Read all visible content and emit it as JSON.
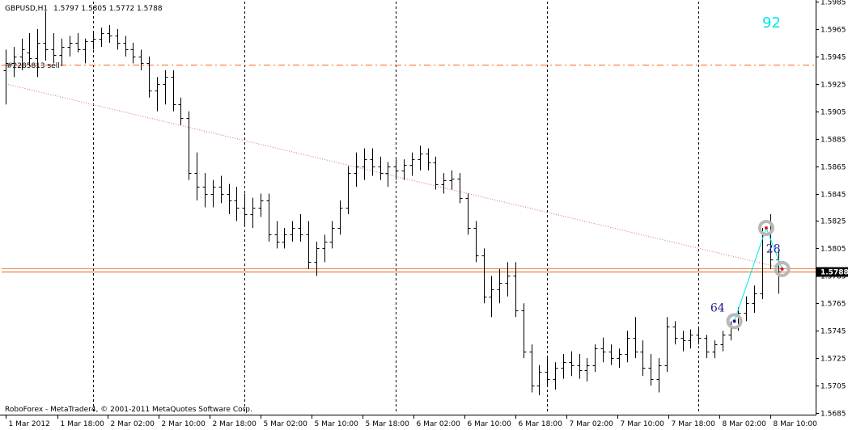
{
  "header": {
    "symbol_timeframe": "GBPUSD,H1",
    "ohlc": "1.5797 1.5805 1.5772 1.5788"
  },
  "footer": {
    "copyright": "RoboForex - MetaTrader4, © 2001-2011 MetaQuotes Software Corp."
  },
  "counter": {
    "value": "92",
    "color": "#00e5ee"
  },
  "order_label": "#2285813 sell",
  "price_label": "1.5788",
  "fib_labels": [
    {
      "text": "64",
      "x": 89.5,
      "y": 1.5762
    },
    {
      "text": "28",
      "x": 96.5,
      "y": 1.5805
    }
  ],
  "colors": {
    "bars": "#000000",
    "order_line": "#ff6a1a",
    "price_line": "#e8651a",
    "trend_line": "#d4735a",
    "swing_line": "#00e5ee",
    "fib_label": "#1a1a8c"
  },
  "chart_data": {
    "type": "ohlc-bar",
    "symbol": "GBPUSD",
    "timeframe": "H1",
    "ylim": [
      1.5685,
      1.5985
    ],
    "xlim": [
      -0.5,
      101.5
    ],
    "y_ticks": [
      "1.5985",
      "1.5965",
      "1.5945",
      "1.5925",
      "1.5905",
      "1.5885",
      "1.5865",
      "1.5845",
      "1.5825",
      "1.5805",
      "1.5785",
      "1.5765",
      "1.5745",
      "1.5725",
      "1.5705",
      "1.5685"
    ],
    "x_ticks": [
      {
        "label": "1 Mar 2012",
        "x": 0
      },
      {
        "label": "1 Mar 18:00",
        "x": 6.5
      },
      {
        "label": "2 Mar 02:00",
        "x": 12.8
      },
      {
        "label": "2 Mar 10:00",
        "x": 19.2
      },
      {
        "label": "2 Mar 18:00",
        "x": 25.6
      },
      {
        "label": "5 Mar 02:00",
        "x": 32.0
      },
      {
        "label": "5 Mar 10:00",
        "x": 38.4
      },
      {
        "label": "5 Mar 18:00",
        "x": 44.8
      },
      {
        "label": "6 Mar 02:00",
        "x": 51.2
      },
      {
        "label": "6 Mar 10:00",
        "x": 57.6
      },
      {
        "label": "6 Mar 18:00",
        "x": 64.0
      },
      {
        "label": "7 Mar 02:00",
        "x": 70.4
      },
      {
        "label": "7 Mar 10:00",
        "x": 76.8
      },
      {
        "label": "7 Mar 18:00",
        "x": 83.2
      },
      {
        "label": "8 Mar 02:00",
        "x": 89.6
      },
      {
        "label": "8 Mar 10:00",
        "x": 96.0
      }
    ],
    "day_separators": [
      11.0,
      49.0,
      68.0,
      87.0
    ],
    "vertical_dashes": [
      11.0,
      30.0,
      49.0,
      68.0,
      87.0
    ],
    "order_level": 1.5939,
    "current_price": 1.5788,
    "trend_line": {
      "x1": 0,
      "y1": 1.5925,
      "x2": 98,
      "y2": 1.579
    },
    "swing_line": [
      {
        "x": 91.5,
        "y": 1.5752
      },
      {
        "x": 95.5,
        "y": 1.582
      },
      {
        "x": 97.5,
        "y": 1.579
      }
    ],
    "swing_markers": [
      {
        "x": 91.5,
        "y": 1.5752
      },
      {
        "x": 95.5,
        "y": 1.582
      },
      {
        "x": 97.5,
        "y": 1.579
      }
    ],
    "ohlc": [
      [
        1.5935,
        1.595,
        1.591,
        1.594
      ],
      [
        1.594,
        1.5952,
        1.593,
        1.5945
      ],
      [
        1.5945,
        1.5958,
        1.5935,
        1.595
      ],
      [
        1.5948,
        1.5962,
        1.5938,
        1.5944
      ],
      [
        1.5944,
        1.5965,
        1.593,
        1.5955
      ],
      [
        1.5955,
        1.5978,
        1.5942,
        1.595
      ],
      [
        1.595,
        1.5962,
        1.594,
        1.5946
      ],
      [
        1.5946,
        1.5958,
        1.5938,
        1.5952
      ],
      [
        1.5952,
        1.596,
        1.5945,
        1.5955
      ],
      [
        1.5955,
        1.5962,
        1.5948,
        1.595
      ],
      [
        1.595,
        1.5958,
        1.594,
        1.5956
      ],
      [
        1.5956,
        1.5963,
        1.595,
        1.5958
      ],
      [
        1.5958,
        1.5966,
        1.5952,
        1.5962
      ],
      [
        1.5962,
        1.5968,
        1.5955,
        1.596
      ],
      [
        1.596,
        1.5965,
        1.595,
        1.5955
      ],
      [
        1.5955,
        1.596,
        1.5945,
        1.595
      ],
      [
        1.595,
        1.5955,
        1.594,
        1.5945
      ],
      [
        1.5945,
        1.595,
        1.5935,
        1.594
      ],
      [
        1.594,
        1.5945,
        1.5915,
        1.592
      ],
      [
        1.592,
        1.593,
        1.5905,
        1.5925
      ],
      [
        1.5925,
        1.5935,
        1.591,
        1.593
      ],
      [
        1.593,
        1.5935,
        1.5905,
        1.591
      ],
      [
        1.591,
        1.5915,
        1.5895,
        1.59
      ],
      [
        1.59,
        1.5905,
        1.5855,
        1.586
      ],
      [
        1.586,
        1.5875,
        1.584,
        1.585
      ],
      [
        1.585,
        1.586,
        1.5835,
        1.5845
      ],
      [
        1.5845,
        1.5855,
        1.5835,
        1.585
      ],
      [
        1.585,
        1.5858,
        1.5838,
        1.5845
      ],
      [
        1.5845,
        1.5852,
        1.583,
        1.584
      ],
      [
        1.584,
        1.585,
        1.5825,
        1.5835
      ],
      [
        1.5835,
        1.5845,
        1.5822,
        1.583
      ],
      [
        1.583,
        1.5842,
        1.582,
        1.5835
      ],
      [
        1.5835,
        1.5845,
        1.5828,
        1.584
      ],
      [
        1.584,
        1.5845,
        1.581,
        1.5815
      ],
      [
        1.5815,
        1.5825,
        1.5805,
        1.581
      ],
      [
        1.581,
        1.582,
        1.5805,
        1.5815
      ],
      [
        1.5815,
        1.5825,
        1.581,
        1.582
      ],
      [
        1.582,
        1.583,
        1.581,
        1.5815
      ],
      [
        1.5815,
        1.5825,
        1.579,
        1.5795
      ],
      [
        1.5795,
        1.581,
        1.5785,
        1.5805
      ],
      [
        1.5805,
        1.5815,
        1.5795,
        1.581
      ],
      [
        1.581,
        1.5825,
        1.5805,
        1.582
      ],
      [
        1.582,
        1.584,
        1.5815,
        1.5835
      ],
      [
        1.5835,
        1.5865,
        1.583,
        1.586
      ],
      [
        1.586,
        1.5875,
        1.585,
        1.5865
      ],
      [
        1.5865,
        1.5878,
        1.5855,
        1.587
      ],
      [
        1.587,
        1.5878,
        1.5858,
        1.5865
      ],
      [
        1.5865,
        1.5872,
        1.5855,
        1.586
      ],
      [
        1.586,
        1.5868,
        1.585,
        1.5865
      ],
      [
        1.5865,
        1.587,
        1.5855,
        1.5862
      ],
      [
        1.5862,
        1.587,
        1.5855,
        1.5866
      ],
      [
        1.5866,
        1.5875,
        1.5858,
        1.587
      ],
      [
        1.587,
        1.588,
        1.5862,
        1.5874
      ],
      [
        1.5874,
        1.5878,
        1.5862,
        1.5868
      ],
      [
        1.5868,
        1.5872,
        1.5848,
        1.5852
      ],
      [
        1.5852,
        1.586,
        1.5845,
        1.5855
      ],
      [
        1.5855,
        1.5862,
        1.5848,
        1.5856
      ],
      [
        1.5856,
        1.586,
        1.5838,
        1.5842
      ],
      [
        1.5842,
        1.5845,
        1.5815,
        1.582
      ],
      [
        1.582,
        1.5825,
        1.5795,
        1.58
      ],
      [
        1.58,
        1.5805,
        1.5765,
        1.577
      ],
      [
        1.577,
        1.5785,
        1.5755,
        1.5775
      ],
      [
        1.5775,
        1.579,
        1.5765,
        1.578
      ],
      [
        1.578,
        1.5795,
        1.577,
        1.5785
      ],
      [
        1.5785,
        1.5795,
        1.5755,
        1.576
      ],
      [
        1.576,
        1.5765,
        1.5725,
        1.573
      ],
      [
        1.573,
        1.5735,
        1.57,
        1.5705
      ],
      [
        1.5705,
        1.572,
        1.5698,
        1.5715
      ],
      [
        1.5715,
        1.5725,
        1.5705,
        1.571
      ],
      [
        1.571,
        1.5722,
        1.5702,
        1.5718
      ],
      [
        1.5718,
        1.5728,
        1.571,
        1.5722
      ],
      [
        1.5722,
        1.573,
        1.5712,
        1.572
      ],
      [
        1.572,
        1.5728,
        1.571,
        1.5716
      ],
      [
        1.5716,
        1.5725,
        1.5708,
        1.572
      ],
      [
        1.572,
        1.5735,
        1.5715,
        1.5732
      ],
      [
        1.5732,
        1.574,
        1.5722,
        1.573
      ],
      [
        1.573,
        1.5735,
        1.572,
        1.5725
      ],
      [
        1.5725,
        1.5732,
        1.5718,
        1.5728
      ],
      [
        1.5728,
        1.5745,
        1.5722,
        1.574
      ],
      [
        1.574,
        1.5755,
        1.5725,
        1.573
      ],
      [
        1.573,
        1.5738,
        1.5712,
        1.5718
      ],
      [
        1.5718,
        1.5728,
        1.5705,
        1.571
      ],
      [
        1.571,
        1.5725,
        1.57,
        1.572
      ],
      [
        1.572,
        1.5755,
        1.5715,
        1.5748
      ],
      [
        1.5748,
        1.5752,
        1.5735,
        1.574
      ],
      [
        1.574,
        1.5745,
        1.573,
        1.5738
      ],
      [
        1.5738,
        1.5746,
        1.5732,
        1.5742
      ],
      [
        1.5742,
        1.5748,
        1.5735,
        1.574
      ],
      [
        1.574,
        1.5742,
        1.5725,
        1.573
      ],
      [
        1.573,
        1.5738,
        1.5725,
        1.5735
      ],
      [
        1.5735,
        1.5745,
        1.573,
        1.5742
      ],
      [
        1.5742,
        1.5752,
        1.5738,
        1.5748
      ],
      [
        1.5748,
        1.5762,
        1.5745,
        1.5758
      ],
      [
        1.5758,
        1.577,
        1.5752,
        1.5765
      ],
      [
        1.5765,
        1.5778,
        1.5758,
        1.5772
      ],
      [
        1.5772,
        1.582,
        1.5768,
        1.5815
      ],
      [
        1.5815,
        1.583,
        1.579,
        1.5797
      ],
      [
        1.5797,
        1.5805,
        1.5772,
        1.5788
      ]
    ]
  }
}
